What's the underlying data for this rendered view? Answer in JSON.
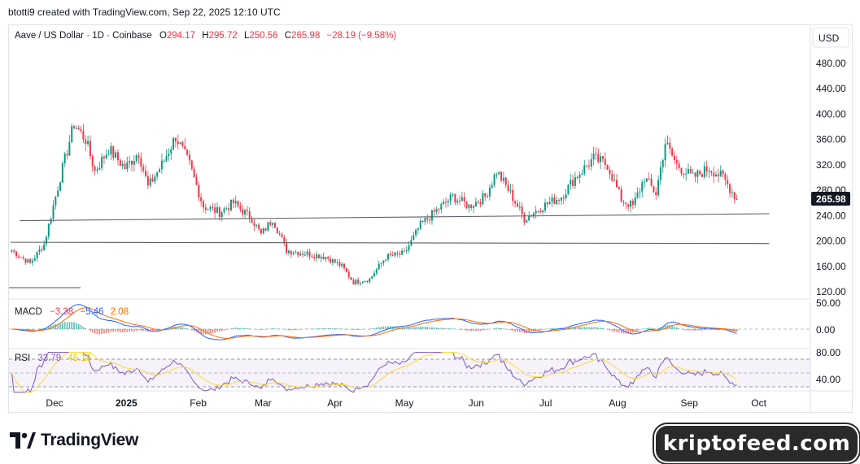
{
  "header": {
    "caption": "btotti9 created with TradingView.com, Sep 22, 2025 12:10 UTC"
  },
  "legend": {
    "symbol": "Aave / US Dollar · 1D · Coinbase",
    "o_label": "O",
    "o_value": "294.17",
    "h_label": "H",
    "h_value": "295.72",
    "l_label": "L",
    "l_value": "250.56",
    "c_label": "C",
    "c_value": "265.98",
    "change": "−28.19 (−9.58%)"
  },
  "price_axis": {
    "currency_label": "USD",
    "ticks": [
      "480.00",
      "440.00",
      "400.00",
      "360.00",
      "320.00",
      "280.00",
      "240.00",
      "200.00",
      "160.00",
      "120.00"
    ],
    "last_price_label": "265.98"
  },
  "macd": {
    "label": "MACD",
    "v1": "−3.38",
    "v2": "−5.46",
    "v3": "2.08",
    "ticks": [
      "50.00",
      "0.00"
    ]
  },
  "rsi": {
    "label": "RSI",
    "v1": "33.79",
    "v2": "45.16",
    "ticks": [
      "80.00",
      "40.00"
    ]
  },
  "time_axis": {
    "labels": [
      "Dec",
      "2025",
      "Feb",
      "Mar",
      "Apr",
      "May",
      "Jun",
      "Jul",
      "Aug",
      "Sep",
      "Oct"
    ]
  },
  "colors": {
    "up": "#089981",
    "down": "#f23645",
    "macd_line": "#2962ff",
    "signal_line": "#ff6d00",
    "rsi_line": "#7e57c2",
    "rsi_ma": "#fdd835",
    "last_price_bg": "#131722"
  },
  "chart_data": {
    "type": "candlestick",
    "title": "Aave / US Dollar · 1D · Coinbase",
    "y_axis_range": [
      120,
      480
    ],
    "x_axis": [
      "Dec",
      "2025",
      "Feb",
      "Mar",
      "Apr",
      "May",
      "Jun",
      "Jul",
      "Aug",
      "Sep",
      "Oct"
    ],
    "close_path": [
      {
        "t": "2024-11-12",
        "close": 185
      },
      {
        "t": "2024-11-20",
        "close": 165
      },
      {
        "t": "2024-11-26",
        "close": 195
      },
      {
        "t": "2024-12-03",
        "close": 300
      },
      {
        "t": "2024-12-09",
        "close": 385
      },
      {
        "t": "2024-12-14",
        "close": 360
      },
      {
        "t": "2024-12-18",
        "close": 310
      },
      {
        "t": "2024-12-24",
        "close": 345
      },
      {
        "t": "2024-12-31",
        "close": 315
      },
      {
        "t": "2025-01-06",
        "close": 340
      },
      {
        "t": "2025-01-10",
        "close": 285
      },
      {
        "t": "2025-01-16",
        "close": 320
      },
      {
        "t": "2025-01-22",
        "close": 365
      },
      {
        "t": "2025-01-28",
        "close": 320
      },
      {
        "t": "2025-02-03",
        "close": 255
      },
      {
        "t": "2025-02-10",
        "close": 245
      },
      {
        "t": "2025-02-16",
        "close": 260
      },
      {
        "t": "2025-02-24",
        "close": 235
      },
      {
        "t": "2025-02-28",
        "close": 210
      },
      {
        "t": "2025-03-05",
        "close": 235
      },
      {
        "t": "2025-03-11",
        "close": 185
      },
      {
        "t": "2025-03-20",
        "close": 180
      },
      {
        "t": "2025-03-28",
        "close": 175
      },
      {
        "t": "2025-04-04",
        "close": 160
      },
      {
        "t": "2025-04-09",
        "close": 135
      },
      {
        "t": "2025-04-16",
        "close": 140
      },
      {
        "t": "2025-04-23",
        "close": 175
      },
      {
        "t": "2025-05-01",
        "close": 180
      },
      {
        "t": "2025-05-08",
        "close": 225
      },
      {
        "t": "2025-05-14",
        "close": 245
      },
      {
        "t": "2025-05-22",
        "close": 270
      },
      {
        "t": "2025-05-29",
        "close": 255
      },
      {
        "t": "2025-06-05",
        "close": 270
      },
      {
        "t": "2025-06-10",
        "close": 310
      },
      {
        "t": "2025-06-16",
        "close": 275
      },
      {
        "t": "2025-06-22",
        "close": 235
      },
      {
        "t": "2025-06-30",
        "close": 255
      },
      {
        "t": "2025-07-08",
        "close": 270
      },
      {
        "t": "2025-07-14",
        "close": 300
      },
      {
        "t": "2025-07-22",
        "close": 330
      },
      {
        "t": "2025-07-28",
        "close": 320
      },
      {
        "t": "2025-08-03",
        "close": 265
      },
      {
        "t": "2025-08-08",
        "close": 255
      },
      {
        "t": "2025-08-13",
        "close": 300
      },
      {
        "t": "2025-08-18",
        "close": 275
      },
      {
        "t": "2025-08-22",
        "close": 355
      },
      {
        "t": "2025-08-27",
        "close": 320
      },
      {
        "t": "2025-09-03",
        "close": 300
      },
      {
        "t": "2025-09-10",
        "close": 315
      },
      {
        "t": "2025-09-16",
        "close": 300
      },
      {
        "t": "2025-09-22",
        "close": 265.98
      }
    ],
    "trendlines": [
      {
        "from": {
          "t": "2024-11-16",
          "price": 232
        },
        "to": {
          "t": "2025-09-25",
          "price": 243
        }
      },
      {
        "from": {
          "t": "2024-11-12",
          "price": 198
        },
        "to": {
          "t": "2025-09-25",
          "price": 196
        }
      }
    ],
    "last_close": 265.98
  }
}
